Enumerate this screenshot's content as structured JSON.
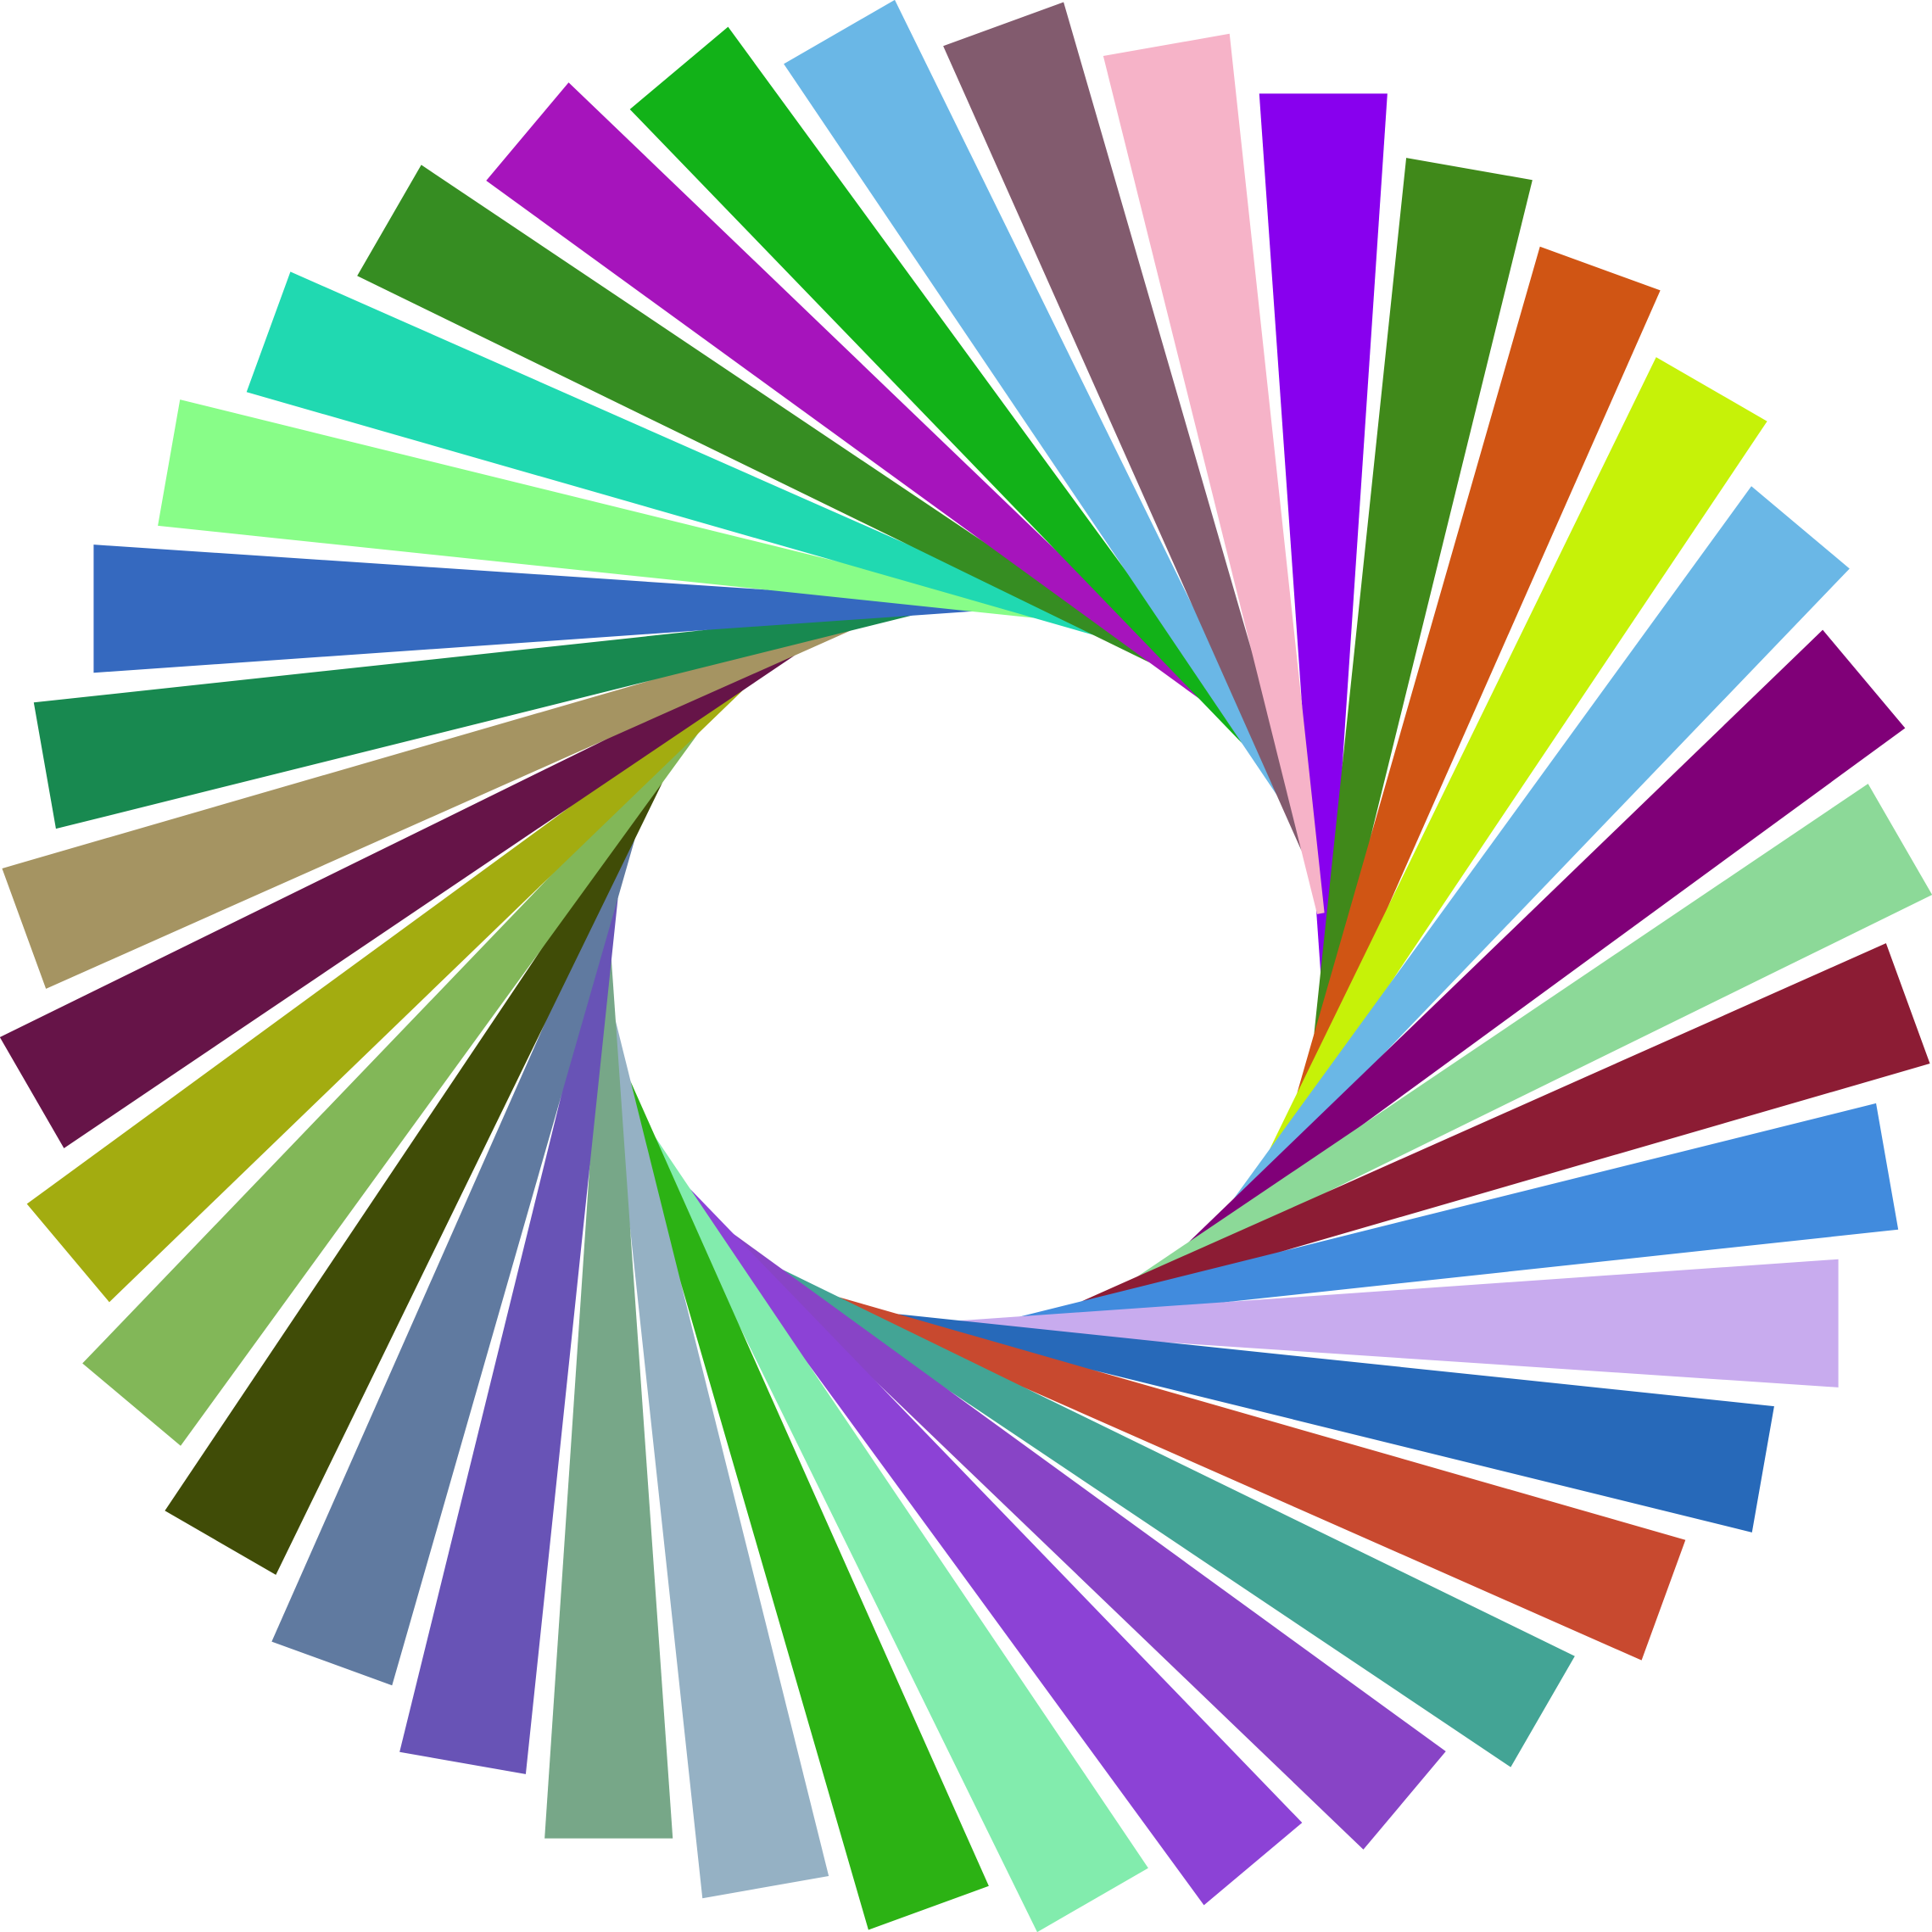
{
  "blades": [
    {
      "color": "#8800ee"
    },
    {
      "color": "#40891a"
    },
    {
      "color": "#d05514"
    },
    {
      "color": "#c6f208"
    },
    {
      "color": "#6ab7e6"
    },
    {
      "color": "#800078"
    },
    {
      "color": "#8cd998"
    },
    {
      "color": "#8c1c34"
    },
    {
      "color": "#418bdd"
    },
    {
      "color": "#c8abee"
    },
    {
      "color": "#2769b9"
    },
    {
      "color": "#c8492f"
    },
    {
      "color": "#43a495"
    },
    {
      "color": "#8844c6"
    },
    {
      "color": "#8c42d6"
    },
    {
      "color": "#82ecad"
    },
    {
      "color": "#2cb214"
    },
    {
      "color": "#95b1c4"
    },
    {
      "color": "#77a788"
    },
    {
      "color": "#6853b6"
    },
    {
      "color": "#607aa0"
    },
    {
      "color": "#404c07"
    },
    {
      "color": "#82b758"
    },
    {
      "color": "#a3ac10"
    },
    {
      "color": "#661448"
    },
    {
      "color": "#a59462"
    },
    {
      "color": "#188950"
    },
    {
      "color": "#3569bf"
    },
    {
      "color": "#88fd88"
    },
    {
      "color": "#20d9b1"
    },
    {
      "color": "#368d22"
    },
    {
      "color": "#a614bc"
    },
    {
      "color": "#12b218"
    },
    {
      "color": "#6ab7e6"
    },
    {
      "color": "#825b6e"
    },
    {
      "color": "#f6b3c8"
    }
  ]
}
